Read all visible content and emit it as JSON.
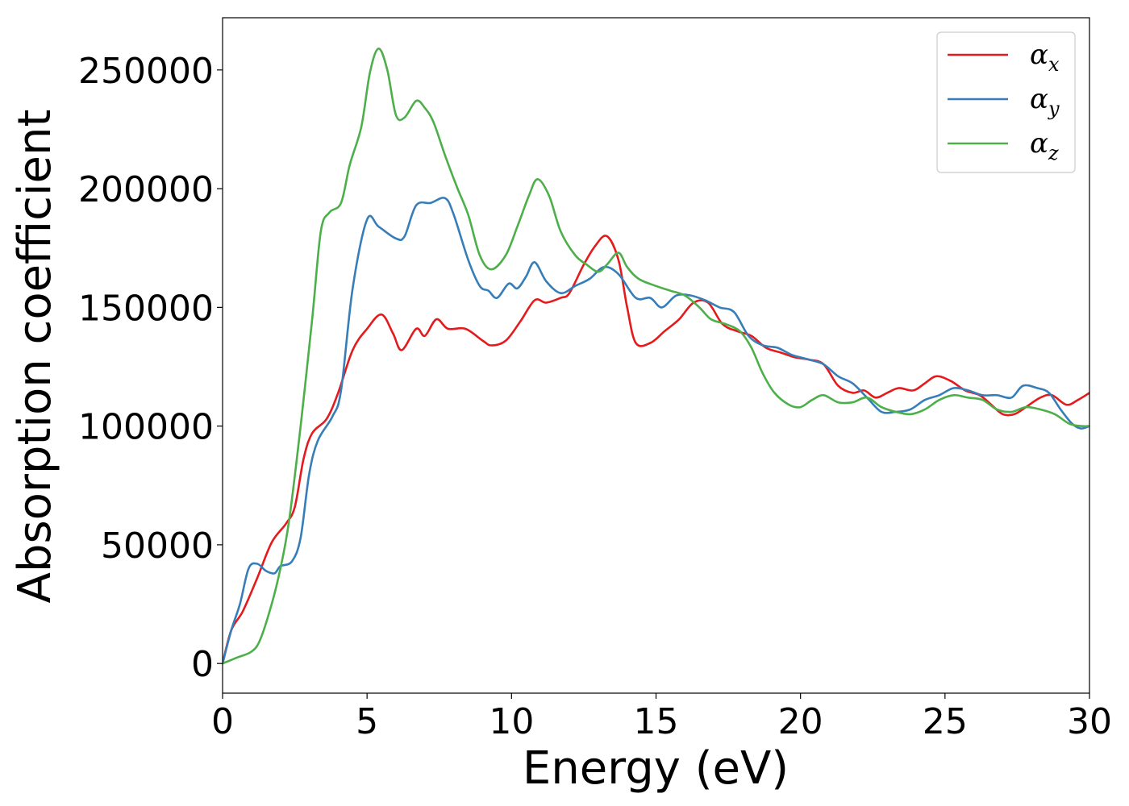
{
  "chart_data": {
    "type": "line",
    "xlabel": "Energy (eV)",
    "ylabel": "Absorption coefficient",
    "xlim": [
      0,
      30
    ],
    "ylim": [
      -12500,
      272000
    ],
    "x_ticks": [
      0,
      5,
      10,
      15,
      20,
      25,
      30
    ],
    "x_tick_labels": [
      "0",
      "5",
      "10",
      "15",
      "20",
      "25",
      "30"
    ],
    "y_ticks": [
      0,
      50000,
      100000,
      150000,
      200000,
      250000
    ],
    "y_tick_labels": [
      "0",
      "50000",
      "100000",
      "150000",
      "200000",
      "250000"
    ],
    "grid": false,
    "legend_position": "top-right",
    "series": [
      {
        "name": "α_x",
        "legend_symbol": "α",
        "legend_subscript": "x",
        "color": "#e41a1c",
        "points": [
          [
            0,
            0
          ],
          [
            0.3,
            14000
          ],
          [
            0.7,
            22000
          ],
          [
            1.2,
            36000
          ],
          [
            1.7,
            51000
          ],
          [
            2.2,
            59000
          ],
          [
            2.5,
            66000
          ],
          [
            2.8,
            86000
          ],
          [
            3.1,
            97000
          ],
          [
            3.6,
            103000
          ],
          [
            4.0,
            114000
          ],
          [
            4.5,
            132000
          ],
          [
            5.0,
            141000
          ],
          [
            5.5,
            147000
          ],
          [
            5.9,
            139000
          ],
          [
            6.2,
            132000
          ],
          [
            6.7,
            141000
          ],
          [
            7.0,
            138000
          ],
          [
            7.4,
            145000
          ],
          [
            7.8,
            141000
          ],
          [
            8.4,
            141000
          ],
          [
            9.0,
            136000
          ],
          [
            9.3,
            134000
          ],
          [
            9.8,
            136000
          ],
          [
            10.3,
            144000
          ],
          [
            10.8,
            153000
          ],
          [
            11.2,
            152000
          ],
          [
            11.7,
            154000
          ],
          [
            12.0,
            156000
          ],
          [
            12.5,
            168000
          ],
          [
            12.9,
            176000
          ],
          [
            13.3,
            180000
          ],
          [
            13.7,
            170000
          ],
          [
            14.0,
            150000
          ],
          [
            14.3,
            135000
          ],
          [
            14.8,
            135000
          ],
          [
            15.3,
            140000
          ],
          [
            15.8,
            145000
          ],
          [
            16.3,
            152000
          ],
          [
            16.8,
            152000
          ],
          [
            17.3,
            143000
          ],
          [
            17.8,
            140000
          ],
          [
            18.3,
            138000
          ],
          [
            18.8,
            133000
          ],
          [
            19.3,
            131000
          ],
          [
            19.8,
            129000
          ],
          [
            20.3,
            128000
          ],
          [
            20.8,
            126000
          ],
          [
            21.3,
            117000
          ],
          [
            21.8,
            114000
          ],
          [
            22.2,
            115000
          ],
          [
            22.6,
            112000
          ],
          [
            23.0,
            114000
          ],
          [
            23.4,
            116000
          ],
          [
            23.9,
            115000
          ],
          [
            24.3,
            118000
          ],
          [
            24.7,
            121000
          ],
          [
            25.2,
            119000
          ],
          [
            25.7,
            115000
          ],
          [
            26.2,
            113000
          ],
          [
            26.6,
            109000
          ],
          [
            27.0,
            105000
          ],
          [
            27.4,
            105000
          ],
          [
            27.8,
            108000
          ],
          [
            28.3,
            112000
          ],
          [
            28.7,
            113000
          ],
          [
            29.2,
            109000
          ],
          [
            29.6,
            111000
          ],
          [
            30.0,
            114000
          ]
        ]
      },
      {
        "name": "α_y",
        "legend_symbol": "α",
        "legend_subscript": "y",
        "color": "#377eb8",
        "points": [
          [
            0,
            0
          ],
          [
            0.3,
            14000
          ],
          [
            0.6,
            25000
          ],
          [
            0.9,
            40000
          ],
          [
            1.2,
            42000
          ],
          [
            1.5,
            39000
          ],
          [
            1.8,
            38000
          ],
          [
            2.0,
            41000
          ],
          [
            2.4,
            43000
          ],
          [
            2.7,
            53000
          ],
          [
            3.0,
            80000
          ],
          [
            3.3,
            94000
          ],
          [
            3.8,
            104000
          ],
          [
            4.1,
            115000
          ],
          [
            4.5,
            158000
          ],
          [
            5.0,
            187000
          ],
          [
            5.4,
            184000
          ],
          [
            6.0,
            179000
          ],
          [
            6.3,
            180000
          ],
          [
            6.7,
            193000
          ],
          [
            7.2,
            194000
          ],
          [
            7.7,
            196000
          ],
          [
            8.0,
            189000
          ],
          [
            8.5,
            170000
          ],
          [
            8.9,
            159000
          ],
          [
            9.2,
            157000
          ],
          [
            9.5,
            154000
          ],
          [
            9.9,
            160000
          ],
          [
            10.2,
            158000
          ],
          [
            10.5,
            163000
          ],
          [
            10.8,
            169000
          ],
          [
            11.2,
            161000
          ],
          [
            11.7,
            156000
          ],
          [
            12.2,
            159000
          ],
          [
            12.7,
            162000
          ],
          [
            13.2,
            167000
          ],
          [
            13.7,
            164000
          ],
          [
            14.3,
            154000
          ],
          [
            14.8,
            154000
          ],
          [
            15.2,
            150000
          ],
          [
            15.7,
            155000
          ],
          [
            16.2,
            155000
          ],
          [
            16.7,
            153000
          ],
          [
            17.2,
            150000
          ],
          [
            17.7,
            148000
          ],
          [
            18.2,
            138000
          ],
          [
            18.7,
            134000
          ],
          [
            19.2,
            133000
          ],
          [
            19.7,
            130000
          ],
          [
            20.3,
            128000
          ],
          [
            20.8,
            126000
          ],
          [
            21.3,
            121000
          ],
          [
            21.8,
            118000
          ],
          [
            22.3,
            112000
          ],
          [
            22.8,
            106000
          ],
          [
            23.3,
            106000
          ],
          [
            23.8,
            107000
          ],
          [
            24.3,
            111000
          ],
          [
            24.8,
            113000
          ],
          [
            25.3,
            116000
          ],
          [
            25.8,
            115000
          ],
          [
            26.3,
            113000
          ],
          [
            26.8,
            113000
          ],
          [
            27.3,
            112000
          ],
          [
            27.7,
            117000
          ],
          [
            28.2,
            116000
          ],
          [
            28.6,
            114000
          ],
          [
            29.0,
            107000
          ],
          [
            29.4,
            101000
          ],
          [
            29.7,
            99000
          ],
          [
            30.0,
            100000
          ]
        ]
      },
      {
        "name": "α_z",
        "legend_symbol": "α",
        "legend_subscript": "z",
        "color": "#4daf4a",
        "points": [
          [
            0,
            0
          ],
          [
            0.5,
            2500
          ],
          [
            1.0,
            5000
          ],
          [
            1.3,
            10000
          ],
          [
            1.7,
            25000
          ],
          [
            2.0,
            40000
          ],
          [
            2.3,
            60000
          ],
          [
            2.7,
            100000
          ],
          [
            3.1,
            145000
          ],
          [
            3.4,
            182000
          ],
          [
            3.7,
            190000
          ],
          [
            4.1,
            194000
          ],
          [
            4.4,
            210000
          ],
          [
            4.8,
            226000
          ],
          [
            5.1,
            249000
          ],
          [
            5.4,
            259000
          ],
          [
            5.7,
            250000
          ],
          [
            6.0,
            231000
          ],
          [
            6.3,
            230000
          ],
          [
            6.7,
            237000
          ],
          [
            7.0,
            234000
          ],
          [
            7.3,
            228000
          ],
          [
            7.7,
            214000
          ],
          [
            8.1,
            201000
          ],
          [
            8.5,
            189000
          ],
          [
            8.9,
            172000
          ],
          [
            9.3,
            166000
          ],
          [
            9.8,
            172000
          ],
          [
            10.2,
            184000
          ],
          [
            10.6,
            197000
          ],
          [
            10.9,
            204000
          ],
          [
            11.3,
            197000
          ],
          [
            11.7,
            182000
          ],
          [
            12.2,
            172000
          ],
          [
            12.6,
            168000
          ],
          [
            13.0,
            165000
          ],
          [
            13.3,
            168000
          ],
          [
            13.7,
            173000
          ],
          [
            14.0,
            167000
          ],
          [
            14.4,
            162000
          ],
          [
            15.0,
            159000
          ],
          [
            15.5,
            157000
          ],
          [
            16.0,
            155000
          ],
          [
            16.5,
            150000
          ],
          [
            16.9,
            145000
          ],
          [
            17.4,
            143000
          ],
          [
            17.9,
            140000
          ],
          [
            18.3,
            133000
          ],
          [
            18.7,
            122000
          ],
          [
            19.1,
            114000
          ],
          [
            19.6,
            109000
          ],
          [
            20.0,
            108000
          ],
          [
            20.4,
            111000
          ],
          [
            20.8,
            113000
          ],
          [
            21.3,
            110000
          ],
          [
            21.8,
            110000
          ],
          [
            22.3,
            112000
          ],
          [
            22.8,
            108000
          ],
          [
            23.3,
            106000
          ],
          [
            23.8,
            105000
          ],
          [
            24.3,
            107000
          ],
          [
            24.8,
            111000
          ],
          [
            25.3,
            113000
          ],
          [
            25.8,
            112000
          ],
          [
            26.3,
            111000
          ],
          [
            26.8,
            107000
          ],
          [
            27.3,
            106000
          ],
          [
            27.8,
            108000
          ],
          [
            28.3,
            107000
          ],
          [
            28.8,
            105000
          ],
          [
            29.3,
            101000
          ],
          [
            29.7,
            100000
          ],
          [
            30.0,
            100000
          ]
        ]
      }
    ]
  }
}
